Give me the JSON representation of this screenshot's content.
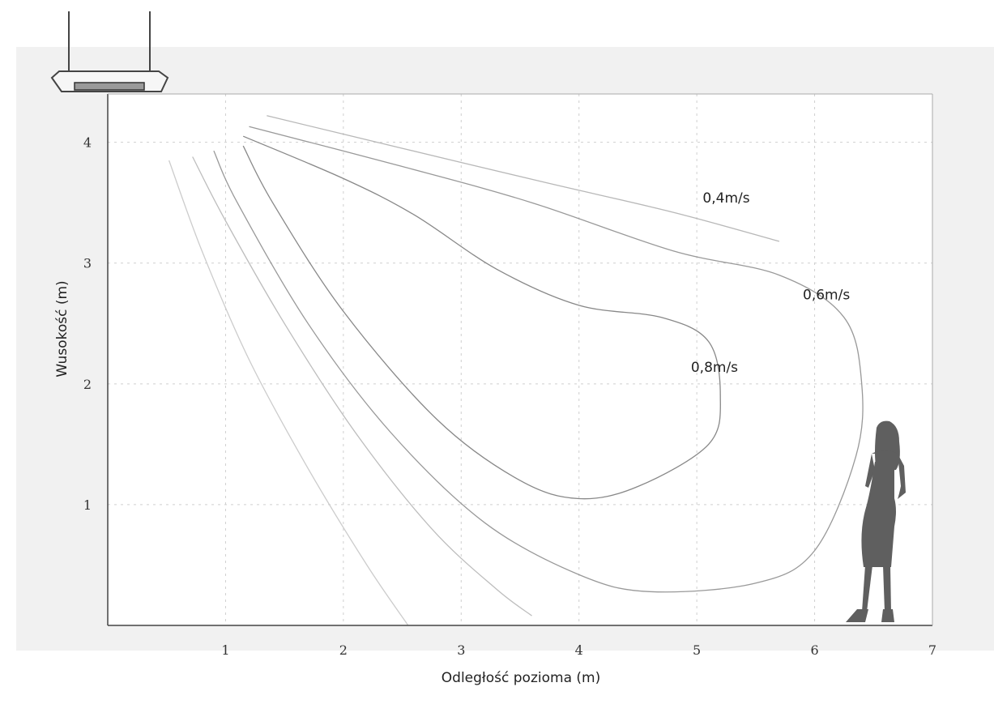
{
  "chart_data": {
    "type": "line",
    "xlabel": "Odległość pozioma (m)",
    "ylabel": "Wusokość (m)",
    "xlim": [
      0,
      7
    ],
    "ylim": [
      0,
      4.4
    ],
    "x_ticks": [
      "1",
      "2",
      "3",
      "4",
      "5",
      "6",
      "7"
    ],
    "y_ticks": [
      "1",
      "2",
      "3",
      "4"
    ],
    "grid": true,
    "colors": {
      "background": "#f1f1f1",
      "plot": "#ffffff",
      "curve": "#8a8a8a",
      "figure": "#5f5f5f"
    },
    "annotations": [
      {
        "text": "0,4m/s",
        "x": 5.25,
        "y": 3.5
      },
      {
        "text": "0,6m/s",
        "x": 6.1,
        "y": 2.7
      },
      {
        "text": "0,8m/s",
        "x": 5.15,
        "y": 2.1
      }
    ],
    "series": [
      {
        "name": "0,8m/s",
        "points": [
          [
            1.15,
            3.97
          ],
          [
            1.4,
            3.5
          ],
          [
            2.0,
            2.6
          ],
          [
            2.8,
            1.7
          ],
          [
            3.5,
            1.2
          ],
          [
            4.0,
            1.05
          ],
          [
            4.5,
            1.15
          ],
          [
            5.1,
            1.5
          ],
          [
            5.2,
            1.9
          ],
          [
            5.1,
            2.35
          ],
          [
            4.7,
            2.55
          ],
          [
            4.0,
            2.65
          ],
          [
            3.3,
            2.95
          ],
          [
            2.6,
            3.4
          ],
          [
            2.0,
            3.7
          ],
          [
            1.15,
            4.05
          ]
        ]
      },
      {
        "name": "0,6m/s",
        "points": [
          [
            0.9,
            3.93
          ],
          [
            1.1,
            3.5
          ],
          [
            1.7,
            2.5
          ],
          [
            2.4,
            1.6
          ],
          [
            3.2,
            0.85
          ],
          [
            4.0,
            0.42
          ],
          [
            4.6,
            0.28
          ],
          [
            5.5,
            0.35
          ],
          [
            6.0,
            0.62
          ],
          [
            6.35,
            1.4
          ],
          [
            6.4,
            2.0
          ],
          [
            6.25,
            2.55
          ],
          [
            5.7,
            2.9
          ],
          [
            4.8,
            3.1
          ],
          [
            3.6,
            3.5
          ],
          [
            2.5,
            3.8
          ],
          [
            1.2,
            4.13
          ]
        ]
      },
      {
        "name": "0,4m/s",
        "points": [
          [
            1.35,
            4.22
          ],
          [
            2.5,
            3.95
          ],
          [
            3.7,
            3.67
          ],
          [
            4.8,
            3.42
          ],
          [
            5.7,
            3.18
          ]
        ]
      },
      {
        "name": "",
        "points": [
          [
            0.72,
            3.88
          ],
          [
            1.0,
            3.35
          ],
          [
            1.5,
            2.5
          ],
          [
            2.1,
            1.6
          ],
          [
            2.75,
            0.8
          ],
          [
            3.3,
            0.3
          ],
          [
            3.6,
            0.08
          ]
        ]
      },
      {
        "name": "",
        "points": [
          [
            0.52,
            3.85
          ],
          [
            0.8,
            3.1
          ],
          [
            1.2,
            2.2
          ],
          [
            1.7,
            1.3
          ],
          [
            2.2,
            0.5
          ],
          [
            2.55,
            0.0
          ]
        ]
      }
    ]
  }
}
